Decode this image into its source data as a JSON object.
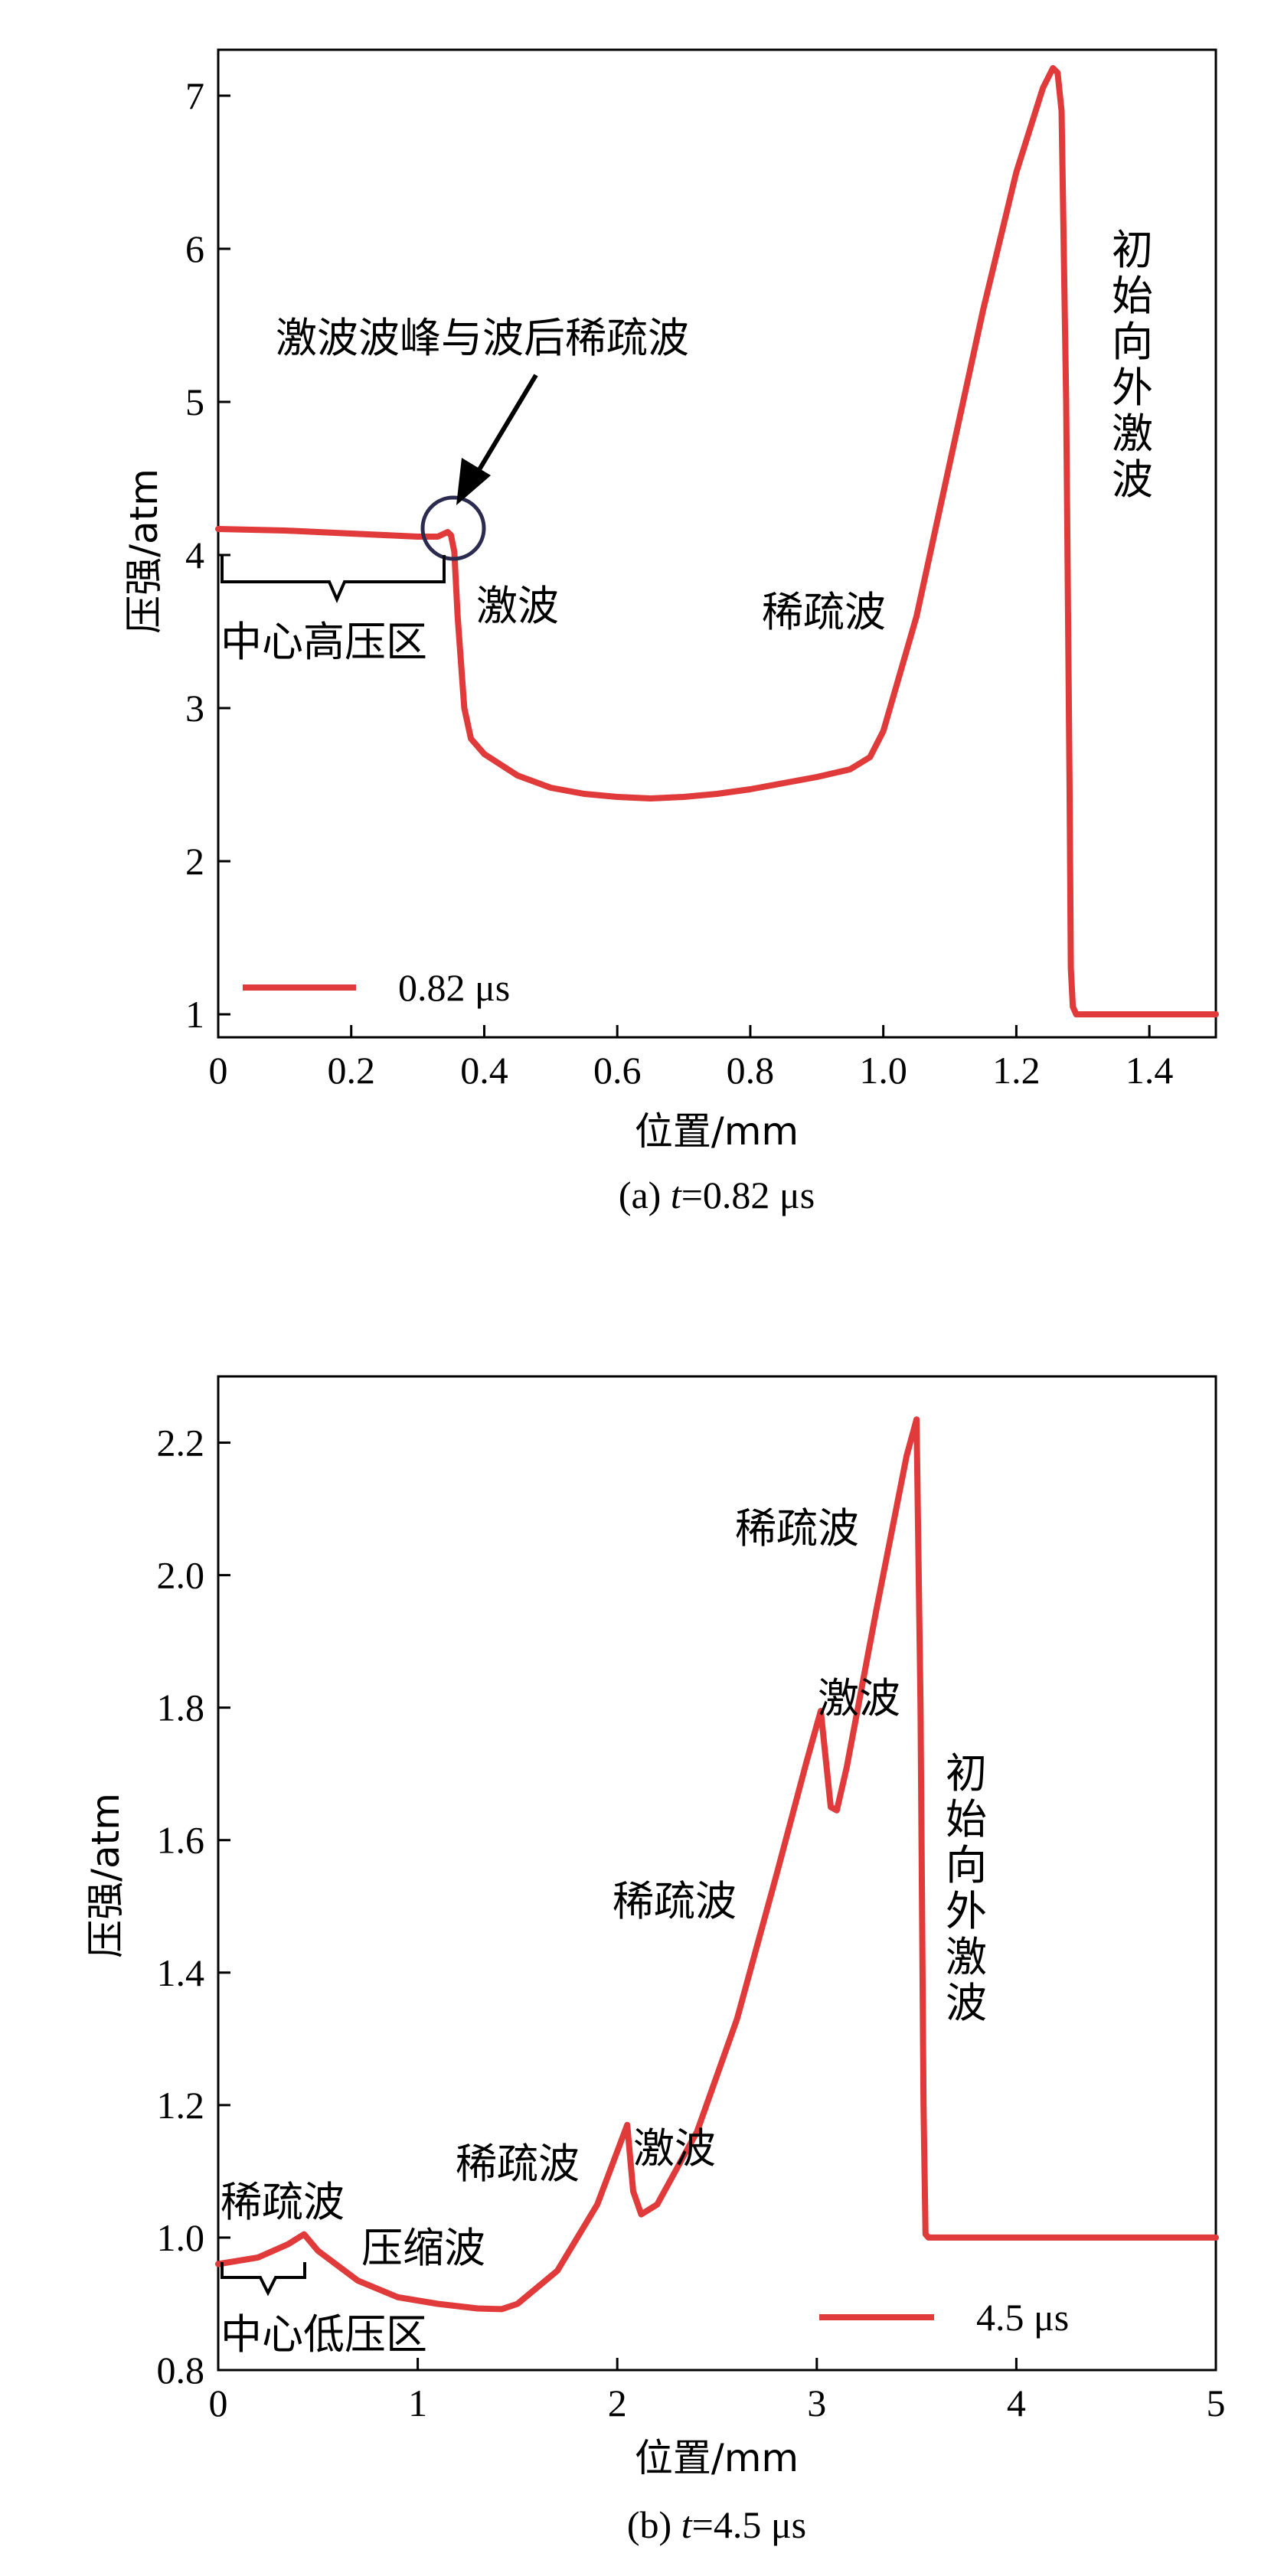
{
  "chart_data": [
    {
      "type": "line",
      "xlabel": "位置/mm",
      "ylabel": "压强/atm",
      "caption": {
        "prefix": "(a) ",
        "var": "t",
        "rest": "=0.82 μs"
      },
      "xlim": [
        0,
        1.5
      ],
      "ylim": [
        0.85,
        7.3
      ],
      "xticks": [
        0,
        0.2,
        0.4,
        0.6,
        0.8,
        1.0,
        1.2,
        1.4
      ],
      "xtick_labels": [
        "0",
        "0.2",
        "0.4",
        "0.6",
        "0.8",
        "1.0",
        "1.2",
        "1.4"
      ],
      "yticks": [
        1,
        2,
        3,
        4,
        5,
        6,
        7
      ],
      "ytick_labels": [
        "1",
        "2",
        "3",
        "4",
        "5",
        "6",
        "7"
      ],
      "legend": {
        "label": "0.82 μs",
        "position": "bottom-left"
      },
      "grid": false,
      "series": [
        {
          "name": "0.82 μs",
          "color": "#e03a3a",
          "x": [
            0,
            0.1,
            0.2,
            0.3,
            0.33,
            0.345,
            0.35,
            0.355,
            0.36,
            0.37,
            0.38,
            0.4,
            0.45,
            0.5,
            0.55,
            0.6,
            0.65,
            0.7,
            0.75,
            0.8,
            0.85,
            0.9,
            0.95,
            0.98,
            1.0,
            1.05,
            1.1,
            1.15,
            1.2,
            1.24,
            1.255,
            1.262,
            1.268,
            1.275,
            1.28,
            1.282,
            1.285,
            1.29,
            1.35,
            1.4,
            1.45,
            1.5
          ],
          "y": [
            4.17,
            4.16,
            4.14,
            4.12,
            4.12,
            4.15,
            4.13,
            4.02,
            3.6,
            3.0,
            2.8,
            2.7,
            2.56,
            2.48,
            2.44,
            2.42,
            2.41,
            2.42,
            2.44,
            2.47,
            2.51,
            2.55,
            2.6,
            2.68,
            2.85,
            3.6,
            4.6,
            5.6,
            6.5,
            7.05,
            7.18,
            7.15,
            6.9,
            5.0,
            2.5,
            1.3,
            1.05,
            1.0,
            1.0,
            1.0,
            1.0,
            1.0
          ]
        }
      ],
      "annotations": {
        "peak": "激波波峰与波后稀疏波",
        "shock": "激波",
        "rarefaction": "稀疏波",
        "center": "中心高压区",
        "initial_shock": [
          "初",
          "始",
          "向",
          "外",
          "激",
          "波"
        ]
      }
    },
    {
      "type": "line",
      "xlabel": "位置/mm",
      "ylabel": "压强/atm",
      "caption": {
        "prefix": "(b) ",
        "var": "t",
        "rest": "=4.5 μs"
      },
      "xlim": [
        0,
        5
      ],
      "ylim": [
        0.8,
        2.3
      ],
      "xticks": [
        0,
        1,
        2,
        3,
        4,
        5
      ],
      "xtick_labels": [
        "0",
        "1",
        "2",
        "3",
        "4",
        "5"
      ],
      "yticks": [
        0.8,
        1.0,
        1.2,
        1.4,
        1.6,
        1.8,
        2.0,
        2.2
      ],
      "ytick_labels": [
        "0.8",
        "1.0",
        "1.2",
        "1.4",
        "1.6",
        "1.8",
        "2.0",
        "2.2"
      ],
      "legend": {
        "label": "4.5 μs",
        "position": "bottom-right"
      },
      "grid": false,
      "series": [
        {
          "name": "4.5 μs",
          "color": "#e03a3a",
          "x": [
            0,
            0.2,
            0.35,
            0.43,
            0.5,
            0.7,
            0.9,
            1.1,
            1.3,
            1.42,
            1.5,
            1.7,
            1.9,
            2.0,
            2.05,
            2.08,
            2.12,
            2.2,
            2.4,
            2.6,
            2.8,
            2.95,
            3.02,
            3.07,
            3.1,
            3.15,
            3.3,
            3.45,
            3.5,
            3.52,
            3.535,
            3.545,
            3.56,
            3.6,
            4.0,
            4.5,
            5.0
          ],
          "y": [
            0.96,
            0.97,
            0.99,
            1.005,
            0.98,
            0.935,
            0.91,
            0.9,
            0.893,
            0.892,
            0.9,
            0.95,
            1.05,
            1.13,
            1.17,
            1.07,
            1.035,
            1.05,
            1.16,
            1.33,
            1.55,
            1.72,
            1.795,
            1.65,
            1.645,
            1.71,
            1.95,
            2.18,
            2.235,
            1.8,
            1.2,
            1.005,
            1.0,
            1.0,
            1.0,
            1.0,
            1.0
          ]
        }
      ],
      "annotations": {
        "rarefaction_top": "稀疏波",
        "shock_top": "激波",
        "rarefaction_mid": "稀疏波",
        "rarefaction_low": "稀疏波",
        "shock_low": "激波",
        "rarefaction_left": "稀疏波",
        "compression": "压缩波",
        "center": "中心低压区",
        "initial_shock": [
          "初",
          "始",
          "向",
          "外",
          "激",
          "波"
        ]
      }
    }
  ]
}
